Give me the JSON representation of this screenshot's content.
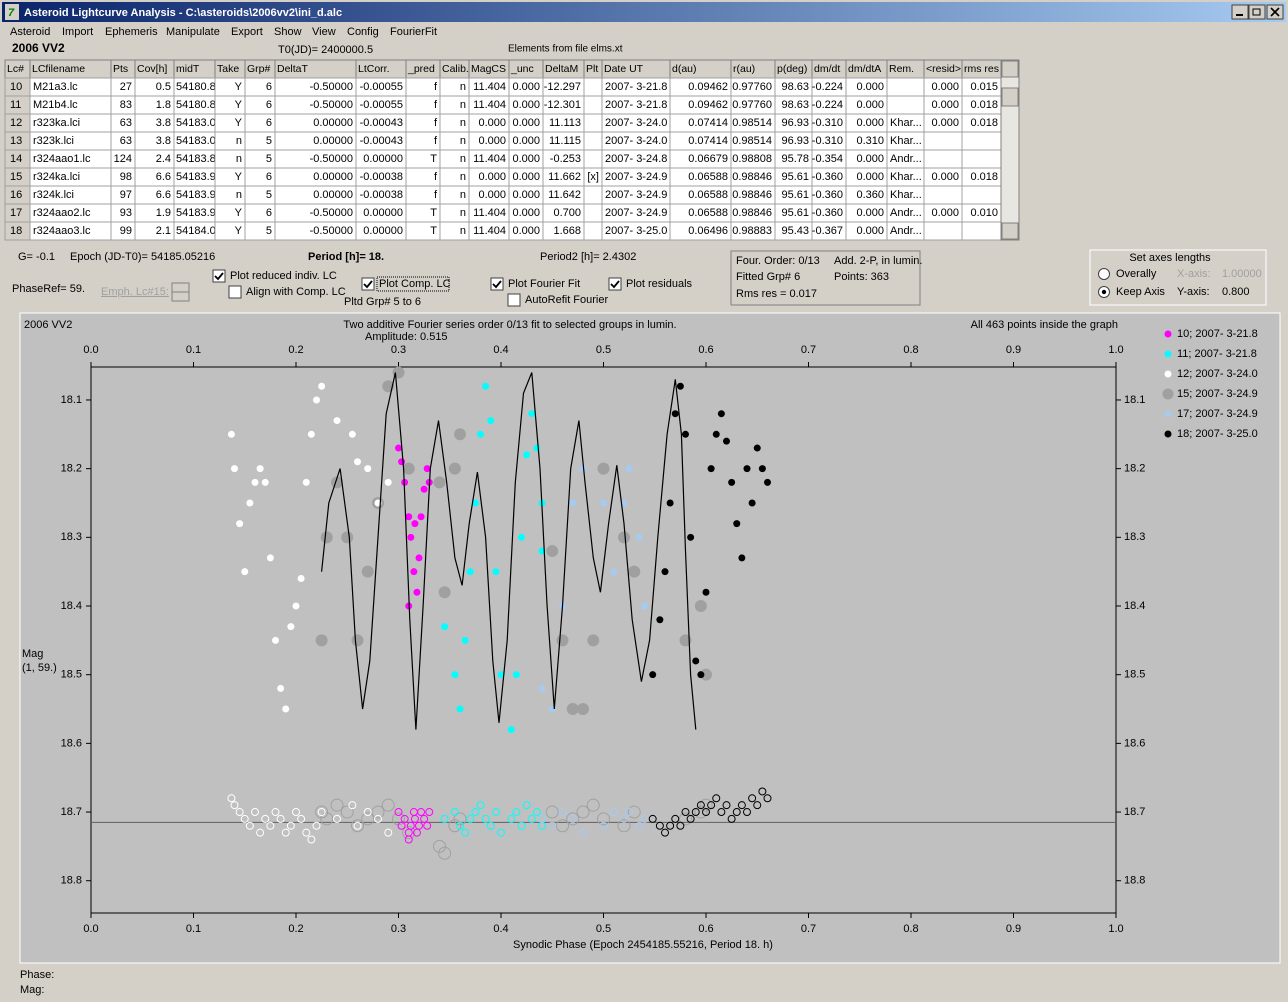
{
  "window": {
    "title": "Asteroid Lightcurve Analysis - C:\\asteroids\\2006vv2\\ini_d.alc"
  },
  "menu": [
    "Asteroid",
    "Import",
    "Ephemeris",
    "Manipulate",
    "Export",
    "Show",
    "View",
    "Config",
    "FourierFit"
  ],
  "header": {
    "object": "2006 VV2",
    "t0": "T0(JD)= 2400000.5",
    "elements": "Elements from file elms.xt"
  },
  "table": {
    "columns": [
      "Lc#",
      "LCfilename",
      "Pts",
      "Cov[h]",
      "midT",
      "Take",
      "Grp#",
      "DeltaT",
      "LtCorr.",
      "_pred",
      "Calib.",
      "MagCS",
      "_unc",
      "DeltaM",
      "Plt",
      "Date UT",
      "d(au)",
      "r(au)",
      "p(deg)",
      "dm/dt",
      "dm/dtA",
      "Rem.",
      "<resid>",
      "rms res"
    ],
    "rows": [
      [
        "10",
        "M21a3.lc",
        "27",
        "0.5",
        "54180.8",
        "Y",
        "6",
        "-0.50000",
        "-0.00055",
        "f",
        "n",
        "11.404",
        "0.000",
        "-12.297",
        null,
        "2007- 3-21.8",
        "0.09462",
        "0.97760",
        "98.63",
        "-0.224",
        "0.000",
        null,
        "0.000",
        "0.015"
      ],
      [
        "11",
        "M21b4.lc",
        "83",
        "1.8",
        "54180.8",
        "Y",
        "6",
        "-0.50000",
        "-0.00055",
        "f",
        "n",
        "11.404",
        "0.000",
        "-12.301",
        null,
        "2007- 3-21.8",
        "0.09462",
        "0.97760",
        "98.63",
        "-0.224",
        "0.000",
        null,
        "0.000",
        "0.018"
      ],
      [
        "12",
        "r323ka.lci",
        "63",
        "3.8",
        "54183.0",
        "Y",
        "6",
        "0.00000",
        "-0.00043",
        "f",
        "n",
        "0.000",
        "0.000",
        "11.113",
        null,
        "2007- 3-24.0",
        "0.07414",
        "0.98514",
        "96.93",
        "-0.310",
        "0.000",
        "Khar...",
        "0.000",
        "0.018"
      ],
      [
        "13",
        "r323k.lci",
        "63",
        "3.8",
        "54183.0",
        "n",
        "5",
        "0.00000",
        "-0.00043",
        "f",
        "n",
        "0.000",
        "0.000",
        "11.115",
        null,
        "2007- 3-24.0",
        "0.07414",
        "0.98514",
        "96.93",
        "-0.310",
        "0.310",
        "Khar...",
        null,
        null
      ],
      [
        "14",
        "r324aao1.lc",
        "124",
        "2.4",
        "54183.8",
        "n",
        "5",
        "-0.50000",
        "0.00000",
        "T",
        "n",
        "11.404",
        "0.000",
        "-0.253",
        null,
        "2007- 3-24.8",
        "0.06679",
        "0.98808",
        "95.78",
        "-0.354",
        "0.000",
        "Andr...",
        null,
        null
      ],
      [
        "15",
        "r324ka.lci",
        "98",
        "6.6",
        "54183.9",
        "Y",
        "6",
        "0.00000",
        "-0.00038",
        "f",
        "n",
        "0.000",
        "0.000",
        "11.662",
        "[x]",
        "2007- 3-24.9",
        "0.06588",
        "0.98846",
        "95.61",
        "-0.360",
        "0.000",
        "Khar...",
        "0.000",
        "0.018"
      ],
      [
        "16",
        "r324k.lci",
        "97",
        "6.6",
        "54183.9",
        "n",
        "5",
        "0.00000",
        "-0.00038",
        "f",
        "n",
        "0.000",
        "0.000",
        "11.642",
        null,
        "2007- 3-24.9",
        "0.06588",
        "0.98846",
        "95.61",
        "-0.360",
        "0.360",
        "Khar...",
        null,
        null
      ],
      [
        "17",
        "r324aao2.lc",
        "93",
        "1.9",
        "54183.9",
        "Y",
        "6",
        "-0.50000",
        "0.00000",
        "T",
        "n",
        "11.404",
        "0.000",
        "0.700",
        null,
        "2007- 3-24.9",
        "0.06588",
        "0.98846",
        "95.61",
        "-0.360",
        "0.000",
        "Andr...",
        "0.000",
        "0.010"
      ],
      [
        "18",
        "r324aao3.lc",
        "99",
        "2.1",
        "54184.0",
        "Y",
        "5",
        "-0.50000",
        "0.00000",
        "T",
        "n",
        "11.404",
        "0.000",
        "1.668",
        null,
        "2007- 3-25.0",
        "0.06496",
        "0.98883",
        "95.43",
        "-0.367",
        "0.000",
        "Andr...",
        null,
        null
      ]
    ]
  },
  "controls": {
    "g": "G= -0.1",
    "epoch": "Epoch (JD-T0)= 54185.05216",
    "period": "Period [h]= 18.",
    "period2": "Period2 [h]= 2.4302",
    "phaseref": "PhaseRef= 59.",
    "emph": "Emph. Lc#15:",
    "pltd": "Pltd Grp#  5  to  6",
    "checkboxes": [
      {
        "label": "Plot reduced indiv. LC",
        "checked": true
      },
      {
        "label": "Align with Comp. LC",
        "checked": false
      },
      {
        "label": "Plot Comp. LC",
        "checked": true
      },
      {
        "label": "Plot Fourier Fit",
        "checked": true
      },
      {
        "label": "AutoRefit Fourier",
        "checked": false
      },
      {
        "label": "Plot residuals",
        "checked": true
      }
    ],
    "info": [
      "Four. Order:  0/13",
      "Add. 2-P, in lumin.",
      "Fitted Grp# 6",
      "Points: 363",
      "Rms res     = 0.017"
    ],
    "axes_group": {
      "title": "Set axes lengths",
      "radios": [
        {
          "label": "Overally",
          "checked": false
        },
        {
          "label": "Keep Axis",
          "checked": true
        }
      ],
      "x_label": "X-axis:",
      "x_value": "1.00000",
      "y_label": "Y-axis:",
      "y_value": "0.800"
    },
    "phase": "Phase:",
    "mag": "Mag:"
  },
  "chart_data": {
    "type": "scatter",
    "title": "2006 VV2",
    "subtitle": "Two additive Fourier series order 0/13 fit to selected groups in lumin.",
    "amplitude": "Amplitude: 0.515",
    "note": "All 463 points inside the graph",
    "xlabel": "Synodic Phase (Epoch 2454185.55216, Period 18. h)",
    "ylabel": [
      "Mag",
      "(1, 59.)"
    ],
    "xlim": [
      0,
      1
    ],
    "xticks": [
      {
        "value": 0,
        "label": "0.0"
      },
      0.1,
      0.2,
      0.3,
      0.4,
      0.5,
      0.6,
      0.7,
      0.8,
      0.9,
      {
        "value": 1,
        "label": "1.0"
      }
    ],
    "ylim": [
      18.052,
      18.847
    ],
    "y_inverted": true,
    "yticks": [
      18.1,
      18.2,
      18.3,
      18.4,
      18.5,
      18.6,
      18.7,
      18.8
    ],
    "grid": false,
    "residual_baseline": 18.715,
    "series": [
      {
        "name": "10; 2007- 3-21.8",
        "color": "#ff00ff",
        "size": 3.5,
        "x": [
          0.3,
          0.303,
          0.306,
          0.31,
          0.31,
          0.312,
          0.315,
          0.316,
          0.318,
          0.32,
          0.322,
          0.325,
          0.328,
          0.33
        ],
        "values": [
          18.17,
          18.19,
          18.22,
          18.27,
          18.4,
          18.3,
          18.35,
          18.28,
          18.38,
          18.33,
          18.27,
          18.23,
          18.2,
          18.22
        ],
        "residuals": [
          18.7,
          18.72,
          18.71,
          18.73,
          18.74,
          18.72,
          18.7,
          18.71,
          18.73,
          18.72,
          18.7,
          18.71,
          18.72,
          18.7
        ]
      },
      {
        "name": "11; 2007- 3-21.8",
        "color": "#00ffff",
        "size": 3.5,
        "x": [
          0.345,
          0.355,
          0.36,
          0.365,
          0.37,
          0.375,
          0.38,
          0.385,
          0.39,
          0.395,
          0.4,
          0.41,
          0.415,
          0.42,
          0.425,
          0.43,
          0.435,
          0.44,
          0.44
        ],
        "values": [
          18.43,
          18.5,
          18.55,
          18.45,
          18.35,
          18.25,
          18.15,
          18.08,
          18.13,
          18.35,
          18.5,
          18.58,
          18.5,
          18.3,
          18.18,
          18.12,
          18.17,
          18.25,
          18.32
        ],
        "residuals": [
          18.71,
          18.7,
          18.72,
          18.73,
          18.71,
          18.7,
          18.69,
          18.71,
          18.72,
          18.7,
          18.73,
          18.71,
          18.7,
          18.72,
          18.69,
          18.71,
          18.7,
          18.72,
          18.71
        ]
      },
      {
        "name": "12; 2007- 3-24.0",
        "color": "#ffffff",
        "size": 3.5,
        "x": [
          0.137,
          0.14,
          0.145,
          0.15,
          0.155,
          0.16,
          0.165,
          0.17,
          0.175,
          0.18,
          0.185,
          0.19,
          0.195,
          0.2,
          0.205,
          0.21,
          0.215,
          0.22,
          0.225,
          0.24,
          0.255,
          0.26,
          0.27,
          0.28,
          0.29
        ],
        "values": [
          18.15,
          18.2,
          18.28,
          18.35,
          18.25,
          18.22,
          18.2,
          18.22,
          18.33,
          18.45,
          18.52,
          18.55,
          18.43,
          18.4,
          18.36,
          18.22,
          18.15,
          18.1,
          18.08,
          18.13,
          18.15,
          18.19,
          18.2,
          18.25,
          18.22
        ],
        "residuals": [
          18.68,
          18.69,
          18.7,
          18.71,
          18.72,
          18.7,
          18.73,
          18.71,
          18.72,
          18.7,
          18.71,
          18.73,
          18.72,
          18.7,
          18.71,
          18.73,
          18.74,
          18.72,
          18.7,
          18.71,
          18.69,
          18.72,
          18.7,
          18.71,
          18.73
        ]
      },
      {
        "name": "15; 2007- 3-24.9",
        "color": "#a0a0a0",
        "size": 6,
        "x": [
          0.225,
          0.23,
          0.24,
          0.25,
          0.26,
          0.27,
          0.28,
          0.29,
          0.3,
          0.31,
          0.34,
          0.345,
          0.355,
          0.36,
          0.45,
          0.46,
          0.47,
          0.48,
          0.49,
          0.5,
          0.52,
          0.53,
          0.58,
          0.595,
          0.6
        ],
        "values": [
          18.45,
          18.3,
          18.22,
          18.3,
          18.45,
          18.35,
          18.25,
          18.08,
          18.06,
          18.2,
          18.22,
          18.38,
          18.2,
          18.15,
          18.32,
          18.45,
          18.55,
          18.55,
          18.45,
          18.2,
          18.3,
          18.35,
          18.45,
          18.4,
          18.5
        ],
        "residuals": [
          18.7,
          18.71,
          18.69,
          18.7,
          18.72,
          18.71,
          18.7,
          18.69,
          18.71,
          18.73,
          18.75,
          18.76,
          18.72,
          18.71,
          18.7,
          18.72,
          18.71,
          18.7,
          18.69,
          18.71,
          18.72,
          18.7,
          18.71,
          18.7,
          18.69
        ]
      },
      {
        "name": "17; 2007- 3-24.9",
        "color": "#a6caf0",
        "size": 3.5,
        "x": [
          0.44,
          0.45,
          0.46,
          0.47,
          0.48,
          0.5,
          0.51,
          0.52,
          0.525,
          0.535,
          0.54
        ],
        "values": [
          18.52,
          18.55,
          18.4,
          18.25,
          18.2,
          18.25,
          18.35,
          18.25,
          18.2,
          18.3,
          18.4
        ],
        "residuals": [
          18.71,
          18.72,
          18.7,
          18.71,
          18.73,
          18.72,
          18.7,
          18.71,
          18.7,
          18.72,
          18.71
        ]
      },
      {
        "name": "18; 2007- 3-25.0",
        "color": "#000000",
        "size": 3.5,
        "x": [
          0.548,
          0.555,
          0.56,
          0.565,
          0.57,
          0.575,
          0.58,
          0.585,
          0.59,
          0.595,
          0.6,
          0.605,
          0.61,
          0.615,
          0.62,
          0.625,
          0.63,
          0.635,
          0.64,
          0.645,
          0.65,
          0.655,
          0.66
        ],
        "values": [
          18.5,
          18.42,
          18.35,
          18.25,
          18.12,
          18.08,
          18.15,
          18.3,
          18.48,
          18.5,
          18.38,
          18.2,
          18.15,
          18.12,
          18.16,
          18.22,
          18.28,
          18.33,
          18.2,
          18.25,
          18.17,
          18.2,
          18.22
        ],
        "residuals": [
          18.71,
          18.72,
          18.73,
          18.72,
          18.71,
          18.72,
          18.7,
          18.71,
          18.7,
          18.69,
          18.7,
          18.69,
          18.68,
          18.7,
          18.69,
          18.71,
          18.7,
          18.69,
          18.7,
          18.68,
          18.69,
          18.67,
          18.68
        ]
      }
    ],
    "fit": {
      "color": "#000000",
      "x": [
        0.225,
        0.232,
        0.243,
        0.252,
        0.258,
        0.265,
        0.272,
        0.28,
        0.288,
        0.297,
        0.305,
        0.311,
        0.317,
        0.324,
        0.331,
        0.339,
        0.347,
        0.355,
        0.362,
        0.369,
        0.377,
        0.385,
        0.392,
        0.398,
        0.406,
        0.414,
        0.422,
        0.43,
        0.438,
        0.445,
        0.452,
        0.46,
        0.468,
        0.476,
        0.482,
        0.49,
        0.497,
        0.505,
        0.513,
        0.52,
        0.528,
        0.537,
        0.545,
        0.553,
        0.562,
        0.57,
        0.576,
        0.58,
        0.585,
        0.59
      ],
      "values": [
        18.35,
        18.25,
        18.2,
        18.3,
        18.45,
        18.55,
        18.48,
        18.3,
        18.12,
        18.06,
        18.2,
        18.42,
        18.58,
        18.4,
        18.2,
        18.13,
        18.22,
        18.33,
        18.37,
        18.28,
        18.205,
        18.3,
        18.48,
        18.57,
        18.45,
        18.22,
        18.09,
        18.06,
        18.2,
        18.4,
        18.55,
        18.4,
        18.2,
        18.13,
        18.22,
        18.33,
        18.38,
        18.28,
        18.195,
        18.28,
        18.42,
        18.51,
        18.45,
        18.3,
        18.15,
        18.07,
        18.15,
        18.32,
        18.5,
        18.58
      ]
    }
  }
}
